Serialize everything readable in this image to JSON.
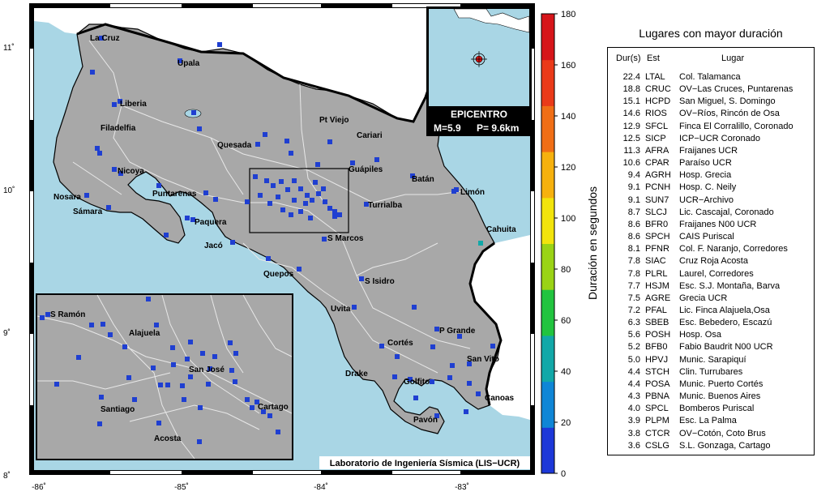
{
  "map": {
    "cities": [
      {
        "name": "La Cruz"
      },
      {
        "name": "Upala"
      },
      {
        "name": "Liberia"
      },
      {
        "name": "Filadelfia"
      },
      {
        "name": "Nicoya"
      },
      {
        "name": "Nosara"
      },
      {
        "name": "Sámara"
      },
      {
        "name": "Puntarenas"
      },
      {
        "name": "Paquera"
      },
      {
        "name": "Jacó"
      },
      {
        "name": "Quesada"
      },
      {
        "name": "Pt Viejo"
      },
      {
        "name": "Cariari"
      },
      {
        "name": "Guápiles"
      },
      {
        "name": "Batán"
      },
      {
        "name": "Limón"
      },
      {
        "name": "Turrialba"
      },
      {
        "name": "Cahuita"
      },
      {
        "name": "S Marcos"
      },
      {
        "name": "Quepos"
      },
      {
        "name": "S Isidro"
      },
      {
        "name": "Uvita"
      },
      {
        "name": "P Grande"
      },
      {
        "name": "Cortés"
      },
      {
        "name": "San Vito"
      },
      {
        "name": "Drake"
      },
      {
        "name": "Golfito"
      },
      {
        "name": "Canoas"
      },
      {
        "name": "Pavón"
      }
    ],
    "inset_cities": [
      {
        "name": "S Ramón"
      },
      {
        "name": "Alajuela"
      },
      {
        "name": "San José"
      },
      {
        "name": "Santiago"
      },
      {
        "name": "Cartago"
      },
      {
        "name": "Acosta"
      }
    ],
    "lat_labels": [
      "11˚",
      "10˚",
      "9˚",
      "8˚"
    ],
    "lon_labels": [
      "-86˚",
      "-85˚",
      "-84˚",
      "-83˚"
    ],
    "epicenter_label": "EPICENTRO",
    "magnitude": "M=5.9",
    "depth": "P=  9.6km",
    "credit": "Laboratorio de Ingeniería Sísmica (LIS−UCR)",
    "colors": {
      "sea": "#a9d6e5",
      "land": "#a8a8a8",
      "station": "#1f3fd1",
      "epicenter": "#e01010"
    }
  },
  "scale": {
    "title": "Duración en segundos",
    "ticks": [
      "0",
      "20",
      "40",
      "60",
      "80",
      "100",
      "120",
      "140",
      "160",
      "180"
    ],
    "colors": [
      "#1d38d8",
      "#0f86d6",
      "#12a8a8",
      "#22c43f",
      "#9ad315",
      "#f2e40c",
      "#f6b10e",
      "#f06e16",
      "#ea3a19",
      "#d6151a"
    ]
  },
  "table": {
    "title": "Lugares con mayor duración",
    "headers": {
      "dur": "Dur(s)",
      "est": "Est",
      "lugar": "Lugar"
    },
    "rows": [
      {
        "dur": "22.4",
        "est": "LTAL",
        "lugar": "Col. Talamanca"
      },
      {
        "dur": "18.8",
        "est": "CRUC",
        "lugar": "OV−Las Cruces, Puntarenas"
      },
      {
        "dur": "15.1",
        "est": "HCPD",
        "lugar": "San Miguel, S. Domingo"
      },
      {
        "dur": "14.6",
        "est": "RIOS",
        "lugar": "OV−Ríos, Rincón de Osa"
      },
      {
        "dur": "12.9",
        "est": "SFCL",
        "lugar": "Finca El Corralillo, Coronado"
      },
      {
        "dur": "12.5",
        "est": "SICP",
        "lugar": "ICP−UCR Coronado"
      },
      {
        "dur": "11.3",
        "est": "AFRA",
        "lugar": "Fraijanes UCR"
      },
      {
        "dur": "10.6",
        "est": "CPAR",
        "lugar": "Paraíso UCR"
      },
      {
        "dur": "9.4",
        "est": "AGRH",
        "lugar": "Hosp. Grecia"
      },
      {
        "dur": "9.1",
        "est": "PCNH",
        "lugar": "Hosp. C. Neily"
      },
      {
        "dur": "9.1",
        "est": "SUN7",
        "lugar": "UCR−Archivo"
      },
      {
        "dur": "8.7",
        "est": "SLCJ",
        "lugar": "Lic. Cascajal, Coronado"
      },
      {
        "dur": "8.6",
        "est": "BFR0",
        "lugar": "Fraijanes N00 UCR"
      },
      {
        "dur": "8.6",
        "est": "SPCH",
        "lugar": "CAIS Puriscal"
      },
      {
        "dur": "8.1",
        "est": "PFNR",
        "lugar": "Col. F. Naranjo, Corredores"
      },
      {
        "dur": "7.8",
        "est": "SIAC",
        "lugar": "Cruz Roja Acosta"
      },
      {
        "dur": "7.8",
        "est": "PLRL",
        "lugar": "Laurel, Corredores"
      },
      {
        "dur": "7.7",
        "est": "HSJM",
        "lugar": "Esc. S.J. Montaña, Barva"
      },
      {
        "dur": "7.5",
        "est": "AGRE",
        "lugar": "Grecia UCR"
      },
      {
        "dur": "7.2",
        "est": "PFAL",
        "lugar": "Lic. Finca Alajuela,Osa"
      },
      {
        "dur": "6.3",
        "est": "SBEB",
        "lugar": "Esc. Bebedero, Escazú"
      },
      {
        "dur": "5.6",
        "est": "POSH",
        "lugar": "Hosp. Osa"
      },
      {
        "dur": "5.2",
        "est": "BFB0",
        "lugar": "Fabio Baudrit N00 UCR"
      },
      {
        "dur": "5.0",
        "est": "HPVJ",
        "lugar": "Munic. Sarapiquí"
      },
      {
        "dur": "4.4",
        "est": "STCH",
        "lugar": "Clin. Turrubares"
      },
      {
        "dur": "4.4",
        "est": "POSA",
        "lugar": "Munic. Puerto Cortés"
      },
      {
        "dur": "4.3",
        "est": "PBNA",
        "lugar": "Munic. Buenos Aires"
      },
      {
        "dur": "4.0",
        "est": "SPCL",
        "lugar": "Bomberos Puriscal"
      },
      {
        "dur": "3.9",
        "est": "PLPM",
        "lugar": "Esc. La Palma"
      },
      {
        "dur": "3.8",
        "est": "CTCR",
        "lugar": "OV−Cotón, Coto Brus"
      },
      {
        "dur": "3.6",
        "est": "CSLG",
        "lugar": "S.L. Gonzaga, Cartago"
      }
    ]
  }
}
